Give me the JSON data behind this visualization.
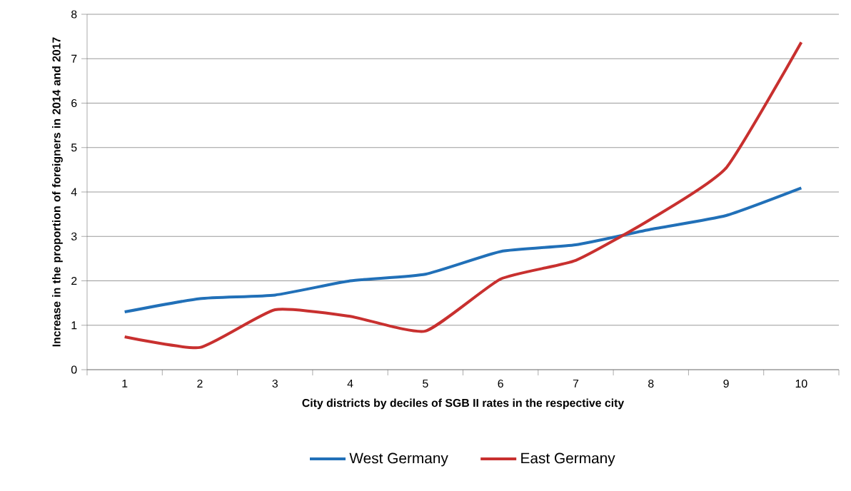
{
  "chart_data": {
    "type": "line",
    "xlabel": "City districts by deciles of SGB II rates in the respective city",
    "ylabel": "Increase in the proportion of foreigners in 2014 and 2017",
    "categories": [
      "1",
      "2",
      "3",
      "4",
      "5",
      "6",
      "7",
      "8",
      "9",
      "10"
    ],
    "series": [
      {
        "name": "West Germany",
        "color": "#2170b8",
        "values": [
          1.3,
          1.6,
          1.68,
          2.0,
          2.15,
          2.66,
          2.81,
          3.16,
          3.47,
          4.09
        ]
      },
      {
        "name": "East Germany",
        "color": "#c8302f",
        "values": [
          0.74,
          0.5,
          1.35,
          1.2,
          0.87,
          2.04,
          2.46,
          3.39,
          4.54,
          7.37
        ]
      }
    ],
    "ylim": [
      0,
      8
    ],
    "yticks": [
      0,
      1,
      2,
      3,
      4,
      5,
      6,
      7,
      8
    ],
    "grid": "y",
    "legend": "bottom",
    "marker": "none",
    "line_style": "solid"
  }
}
